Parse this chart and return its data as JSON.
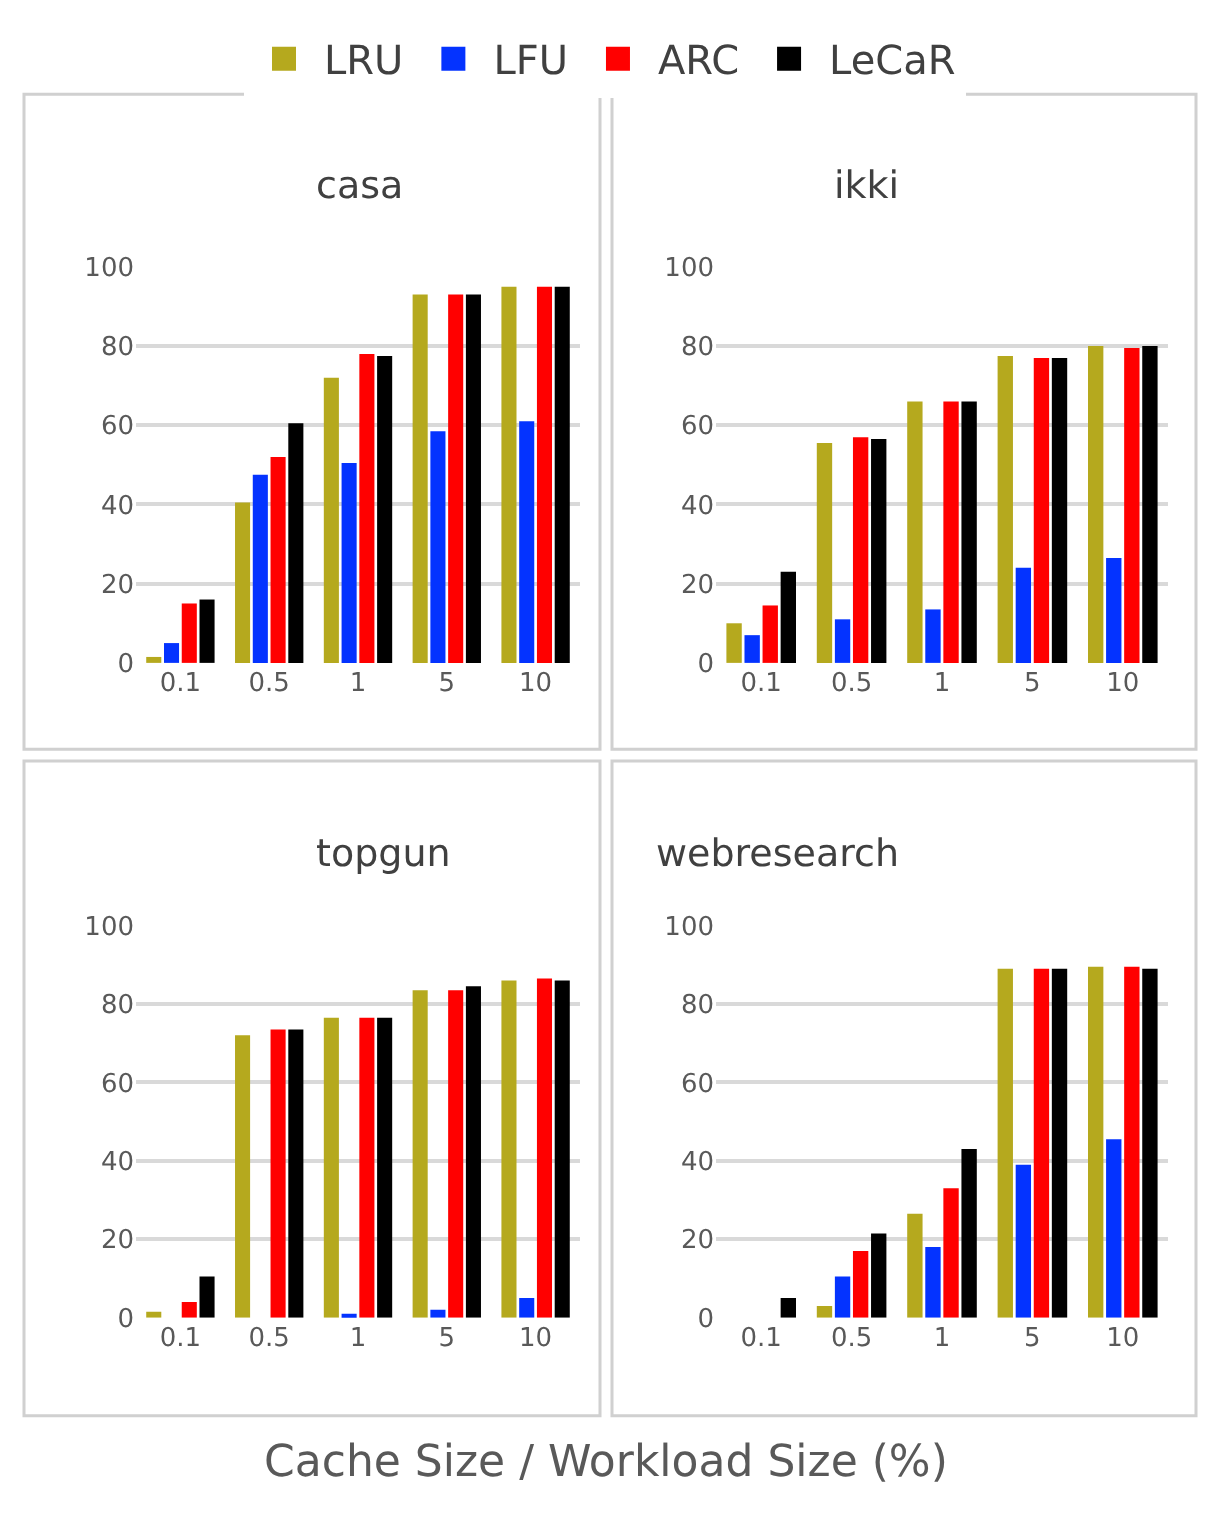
{
  "chart_data": [
    {
      "type": "bar",
      "title": "casa",
      "categories": [
        "0.1",
        "0.5",
        "1",
        "5",
        "10"
      ],
      "ylim": [
        0,
        100
      ],
      "yticks": [
        0,
        20,
        40,
        60,
        80,
        100
      ],
      "grid": "y",
      "legend": "top",
      "series": [
        {
          "name": "LRU",
          "color": "#b5a91e",
          "values": [
            1.5,
            40.5,
            72,
            93,
            95
          ]
        },
        {
          "name": "LFU",
          "color": "#0433ff",
          "values": [
            5,
            47.5,
            50.5,
            58.5,
            61
          ]
        },
        {
          "name": "ARC",
          "color": "#ff0000",
          "values": [
            15,
            52,
            78,
            93,
            95
          ]
        },
        {
          "name": "LeCaR",
          "color": "#000000",
          "values": [
            16,
            60.5,
            77.5,
            93,
            95
          ]
        }
      ]
    },
    {
      "type": "bar",
      "title": "ikki",
      "categories": [
        "0.1",
        "0.5",
        "1",
        "5",
        "10"
      ],
      "ylim": [
        0,
        100
      ],
      "yticks": [
        0,
        20,
        40,
        60,
        80,
        100
      ],
      "grid": "y",
      "series": [
        {
          "color": "#b5a91e",
          "values": [
            10,
            55.5,
            66,
            77.5,
            80
          ]
        },
        {
          "color": "#0433ff",
          "values": [
            7,
            11,
            13.5,
            24,
            26.5
          ]
        },
        {
          "color": "#ff0000",
          "values": [
            14.5,
            57,
            66,
            77,
            79.5
          ]
        },
        {
          "color": "#000000",
          "values": [
            23,
            56.5,
            66,
            77,
            80
          ]
        }
      ]
    },
    {
      "type": "bar",
      "title": "topgun",
      "categories": [
        "0.1",
        "0.5",
        "1",
        "5",
        "10"
      ],
      "ylim": [
        0,
        100
      ],
      "yticks": [
        0,
        20,
        40,
        60,
        80,
        100
      ],
      "grid": "y",
      "xlabel": "Cache Size / Workload Size (%)",
      "series": [
        {
          "color": "#b5a91e",
          "values": [
            1.5,
            72,
            76.5,
            83.5,
            86
          ]
        },
        {
          "color": "#0433ff",
          "values": [
            0,
            0,
            1,
            2,
            5
          ]
        },
        {
          "color": "#ff0000",
          "values": [
            4,
            73.5,
            76.5,
            83.5,
            86.5
          ]
        },
        {
          "color": "#000000",
          "values": [
            10.5,
            73.5,
            76.5,
            84.5,
            86
          ]
        }
      ]
    },
    {
      "type": "bar",
      "title": "webresearch",
      "categories": [
        "0.1",
        "0.5",
        "1",
        "5",
        "10"
      ],
      "ylim": [
        0,
        100
      ],
      "yticks": [
        0,
        20,
        40,
        60,
        80,
        100
      ],
      "grid": "y",
      "series": [
        {
          "color": "#b5a91e",
          "values": [
            0,
            3,
            26.5,
            89,
            89.5
          ]
        },
        {
          "color": "#0433ff",
          "values": [
            0,
            10.5,
            18,
            39,
            45.5
          ]
        },
        {
          "color": "#ff0000",
          "values": [
            0,
            17,
            33,
            89,
            89.5
          ]
        },
        {
          "color": "#000000",
          "values": [
            5,
            21.5,
            43,
            89,
            89
          ]
        }
      ]
    }
  ]
}
